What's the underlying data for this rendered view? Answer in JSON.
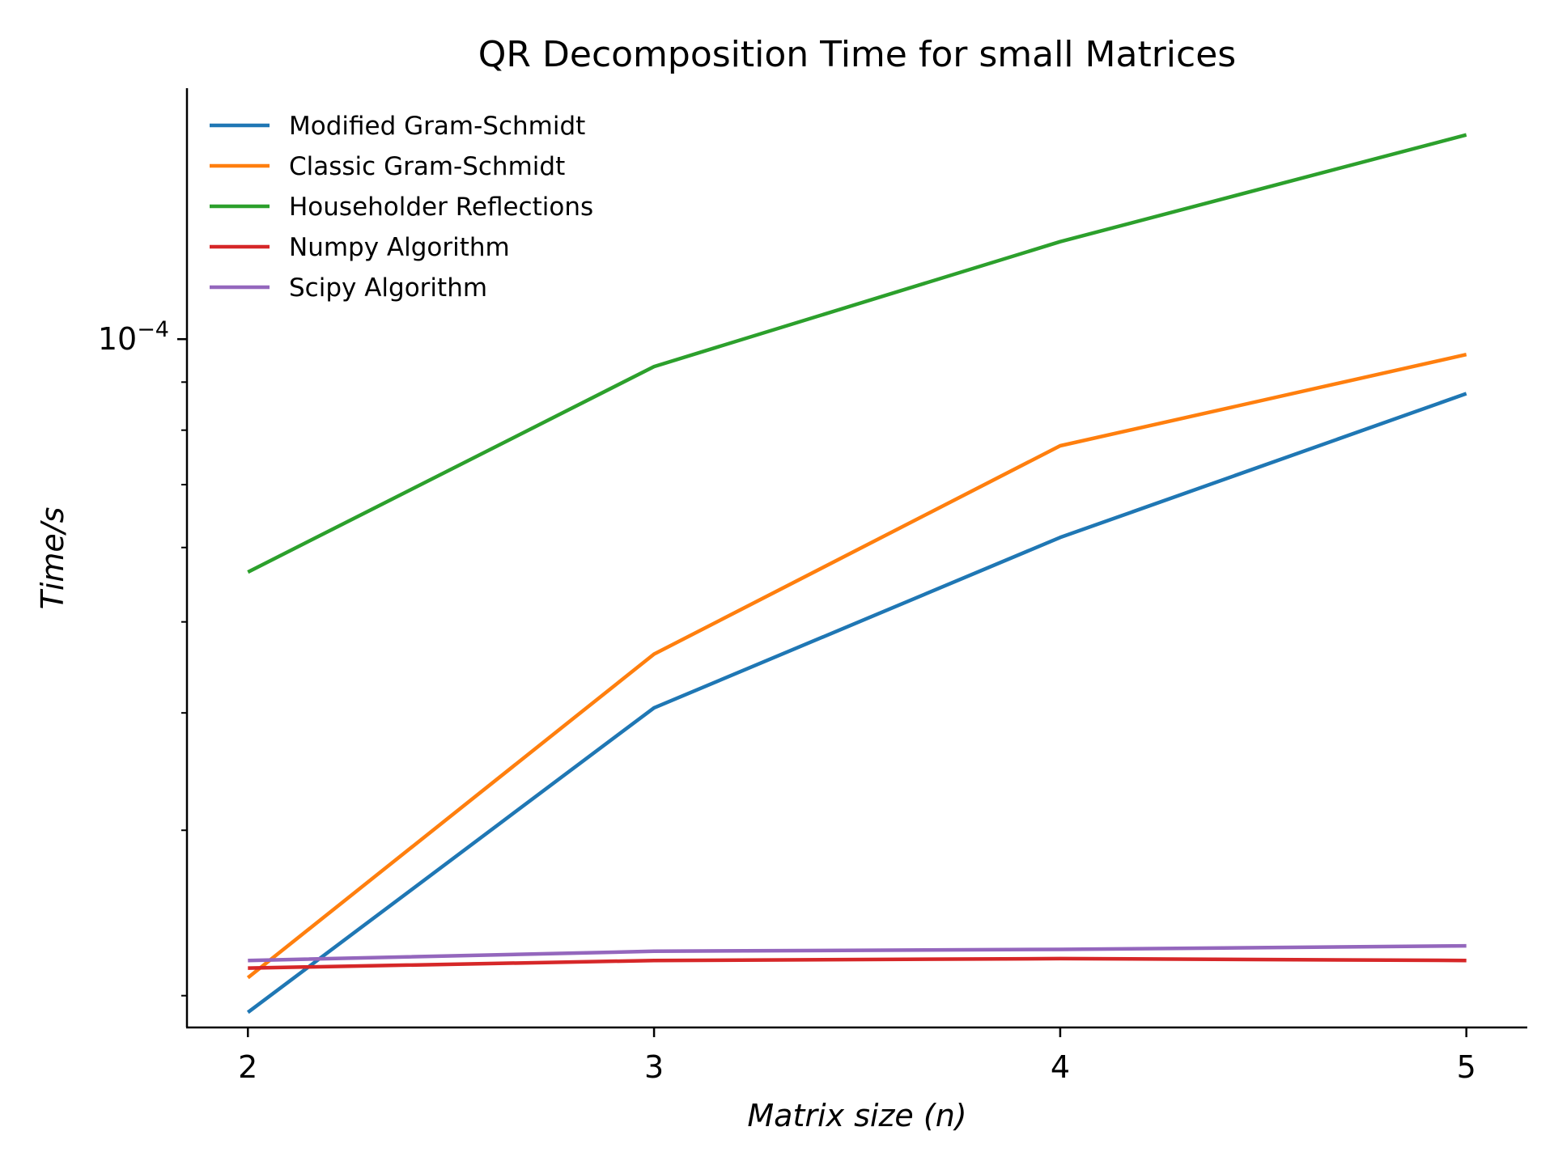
{
  "chart_data": {
    "type": "line",
    "title": "QR Decomposition Time for small Matrices",
    "xlabel_prefix": "Matrix size (",
    "xlabel_var": "n",
    "xlabel_suffix": ")",
    "ylabel": "Time/s",
    "y_scale": "log",
    "x": [
      2,
      3,
      4,
      5
    ],
    "x_tick_labels": [
      "2",
      "3",
      "4",
      "5"
    ],
    "y_tick_major": {
      "base": "10",
      "exponent": "−4",
      "value": 0.0001
    },
    "y_minor_ticks": [
      2e-05,
      3e-05,
      4e-05,
      5e-05,
      6e-05,
      7e-05,
      8e-05,
      9e-05,
      0.0002
    ],
    "ylim": [
      1.85e-05,
      0.000185
    ],
    "xlim": [
      1.85,
      5.15
    ],
    "legend_position": "top-left",
    "grid": false,
    "series": [
      {
        "name": "Modified Gram-Schmidt",
        "color": "#1f77b4",
        "values": [
          1.92e-05,
          4.05e-05,
          6.15e-05,
          8.75e-05
        ]
      },
      {
        "name": "Classic Gram-Schmidt",
        "color": "#ff7f0e",
        "values": [
          2.09e-05,
          4.62e-05,
          7.7e-05,
          9.63e-05
        ]
      },
      {
        "name": "Householder Reflections",
        "color": "#2ca02c",
        "values": [
          5.65e-05,
          9.35e-05,
          0.000127,
          0.000165
        ]
      },
      {
        "name": "Numpy Algorithm",
        "color": "#d62728",
        "values": [
          2.14e-05,
          2.18e-05,
          2.19e-05,
          2.18e-05
        ]
      },
      {
        "name": "Scipy Algorithm",
        "color": "#9467bd",
        "values": [
          2.18e-05,
          2.23e-05,
          2.24e-05,
          2.26e-05
        ]
      }
    ]
  }
}
